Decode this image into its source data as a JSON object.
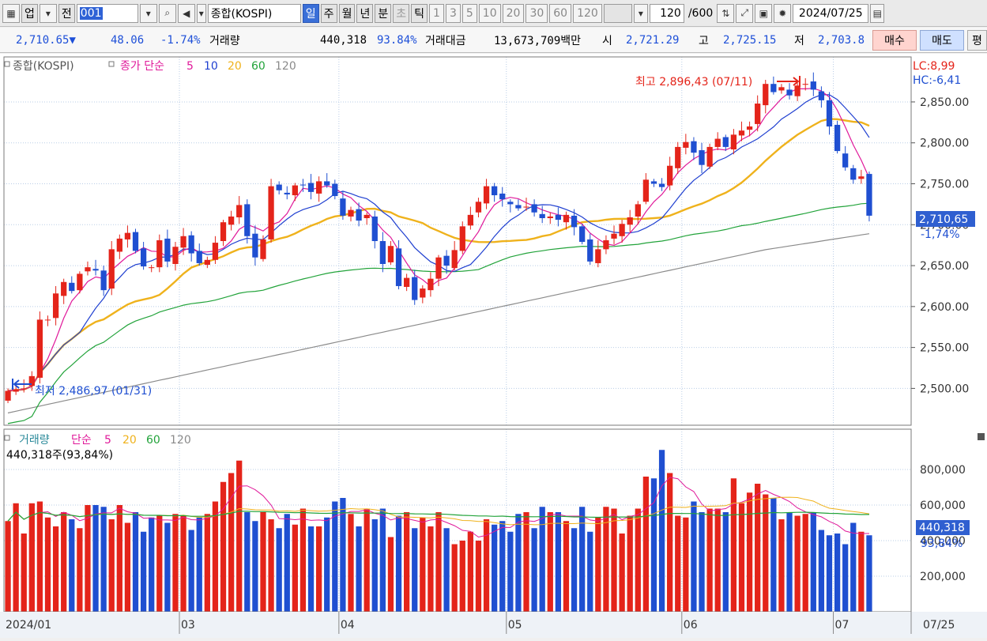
{
  "toolbar": {
    "market_label": "업",
    "mode_label": "전",
    "code_value": "001",
    "index_name": "종합(KOSPI)",
    "periods": [
      "일",
      "주",
      "월",
      "년"
    ],
    "intraday": [
      "분",
      "초",
      "틱"
    ],
    "minute_steps": [
      "1",
      "3",
      "5",
      "10",
      "20",
      "30",
      "60",
      "120"
    ],
    "count_value": "120",
    "count_max": "/600",
    "date_value": "2024/07/25"
  },
  "quote": {
    "price": "2,710.65",
    "change_arrow": "▼",
    "change": "48.06",
    "change_pct": "-1.74%",
    "volume_label": "거래량",
    "volume": "440,318",
    "volume_ratio": "93.84%",
    "amount_label": "거래대금",
    "amount": "13,673,709백만",
    "open_label": "시",
    "open": "2,721.29",
    "high_label": "고",
    "high": "2,725.15",
    "low_label": "저",
    "low": "2,703.8",
    "buy_label": "매수",
    "sell_label": "매도",
    "eval_label": "평"
  },
  "price_legend": {
    "name": "종합(KOSPI)",
    "series": "종가 단순",
    "periods": [
      "5",
      "10",
      "20",
      "60",
      "120"
    ]
  },
  "volume_legend": {
    "name": "거래량",
    "series": "단순",
    "periods": [
      "5",
      "20",
      "60",
      "120"
    ],
    "current": "440,318주(93,84%)"
  },
  "annotations": {
    "high": "최고 2,896,43 (07/11)",
    "low": "최저 2,486,97 (01/31)",
    "lc": "LC:8,99",
    "hc": "HC:-6,41",
    "price_tag": "2,710,65",
    "price_pct": "-1,74%",
    "vol_tag": "440,318",
    "vol_pct": "93,84%"
  },
  "colors": {
    "up": "#e4241a",
    "down": "#1f4fd1",
    "ma5": "#e0199a",
    "ma10": "#1f3fd0",
    "ma20": "#efb21c",
    "ma60": "#22a33a",
    "ma120": "#8a8a8a",
    "grid": "#b9cde6"
  },
  "chart_data": [
    {
      "type": "candlestick",
      "title": "종합(KOSPI)",
      "x_ticks": [
        "2024/01",
        "03",
        "04",
        "05",
        "06",
        "07",
        "07/25"
      ],
      "y_ticks": [
        "2,500.00",
        "2,550.00",
        "2,600.00",
        "2,650.00",
        "2,700.00",
        "2,750.00",
        "2,800.00",
        "2,850.00"
      ],
      "ylim": [
        2455,
        2905
      ],
      "series": [
        "종가",
        "5",
        "10",
        "20",
        "60",
        "120"
      ],
      "closes": [
        2497,
        2499,
        2500,
        2515,
        2584,
        2584,
        2616,
        2630,
        2619,
        2640,
        2648,
        2644,
        2620,
        2670,
        2683,
        2690,
        2668,
        2649,
        2648,
        2681,
        2655,
        2673,
        2686,
        2665,
        2653,
        2657,
        2678,
        2703,
        2710,
        2724,
        2686,
        2660,
        2682,
        2747,
        2742,
        2737,
        2748,
        2748,
        2740,
        2753,
        2748,
        2735,
        2711,
        2718,
        2705,
        2712,
        2680,
        2652,
        2674,
        2625,
        2635,
        2608,
        2622,
        2634,
        2660,
        2650,
        2669,
        2698,
        2712,
        2728,
        2747,
        2736,
        2731,
        2725,
        2720,
        2722,
        2715,
        2708,
        2710,
        2706,
        2712,
        2697,
        2679,
        2655,
        2670,
        2681,
        2689,
        2701,
        2709,
        2725,
        2755,
        2750,
        2746,
        2772,
        2795,
        2801,
        2788,
        2773,
        2795,
        2805,
        2795,
        2810,
        2815,
        2820,
        2848,
        2872,
        2862,
        2868,
        2858,
        2870,
        2872,
        2865,
        2852,
        2820,
        2790,
        2770,
        2755,
        2759,
        2711
      ],
      "volume_ticks": [
        "200,000",
        "400,000",
        "600,000",
        "800,000"
      ],
      "volumes": [
        510,
        610,
        440,
        610,
        620,
        530,
        480,
        560,
        520,
        470,
        600,
        600,
        590,
        520,
        600,
        500,
        560,
        450,
        530,
        540,
        500,
        550,
        540,
        460,
        530,
        550,
        620,
        730,
        780,
        850,
        560,
        510,
        560,
        520,
        470,
        550,
        490,
        580,
        480,
        480,
        530,
        620,
        640,
        550,
        480,
        580,
        520,
        580,
        420,
        540,
        560,
        470,
        530,
        480,
        560,
        470,
        380,
        400,
        450,
        400,
        520,
        490,
        510,
        450,
        550,
        560,
        470,
        590,
        560,
        560,
        510,
        470,
        590,
        450,
        530,
        590,
        580,
        440,
        540,
        580,
        760,
        750,
        910,
        780,
        540,
        530,
        620,
        560,
        580,
        580,
        560,
        750,
        610,
        670,
        720,
        660,
        640,
        520,
        560,
        540,
        550,
        560,
        460,
        430,
        440,
        380,
        500,
        450,
        430
      ]
    }
  ]
}
